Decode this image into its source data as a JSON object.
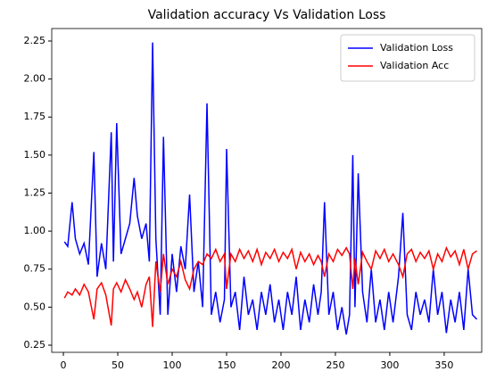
{
  "chart_data": {
    "type": "line",
    "title": "Validation accuracy Vs Validation Loss",
    "x": [
      1,
      4,
      8,
      11,
      15,
      19,
      23,
      28,
      31,
      35,
      39,
      44,
      46,
      49,
      53,
      57,
      61,
      65,
      68,
      72,
      76,
      79,
      82,
      85,
      89,
      92,
      96,
      100,
      104,
      108,
      112,
      116,
      120,
      124,
      128,
      132,
      136,
      140,
      144,
      148,
      150,
      154,
      158,
      162,
      166,
      170,
      174,
      178,
      182,
      186,
      190,
      194,
      198,
      202,
      206,
      210,
      214,
      218,
      222,
      226,
      230,
      234,
      237,
      240,
      244,
      248,
      252,
      256,
      260,
      263,
      266,
      268,
      271,
      275,
      279,
      283,
      287,
      291,
      295,
      299,
      303,
      308,
      312,
      316,
      320,
      324,
      328,
      332,
      336,
      340,
      344,
      348,
      352,
      356,
      360,
      364,
      368,
      372,
      376,
      380
    ],
    "series": [
      {
        "name": "Validation Loss",
        "color": "#0000ff",
        "values": [
          0.93,
          0.9,
          1.19,
          0.95,
          0.85,
          0.92,
          0.78,
          1.52,
          0.7,
          0.92,
          0.75,
          1.65,
          0.8,
          1.71,
          0.85,
          0.95,
          1.05,
          1.35,
          1.1,
          0.95,
          1.05,
          0.8,
          2.24,
          0.95,
          0.45,
          1.62,
          0.45,
          0.85,
          0.6,
          0.9,
          0.75,
          1.24,
          0.6,
          0.8,
          0.5,
          1.84,
          0.45,
          0.6,
          0.4,
          0.55,
          1.54,
          0.5,
          0.6,
          0.35,
          0.7,
          0.45,
          0.55,
          0.35,
          0.6,
          0.45,
          0.65,
          0.4,
          0.55,
          0.35,
          0.6,
          0.45,
          0.7,
          0.35,
          0.55,
          0.4,
          0.65,
          0.45,
          0.6,
          1.19,
          0.45,
          0.6,
          0.35,
          0.5,
          0.32,
          0.45,
          1.5,
          0.5,
          1.38,
          0.6,
          0.4,
          0.75,
          0.4,
          0.55,
          0.35,
          0.6,
          0.4,
          0.7,
          1.12,
          0.45,
          0.35,
          0.6,
          0.45,
          0.55,
          0.4,
          0.75,
          0.45,
          0.6,
          0.33,
          0.55,
          0.4,
          0.6,
          0.35,
          0.75,
          0.45,
          0.42
        ]
      },
      {
        "name": "Validation Acc",
        "color": "#ff0000",
        "values": [
          0.56,
          0.6,
          0.58,
          0.62,
          0.58,
          0.65,
          0.6,
          0.42,
          0.62,
          0.66,
          0.58,
          0.38,
          0.62,
          0.66,
          0.6,
          0.68,
          0.62,
          0.55,
          0.6,
          0.5,
          0.65,
          0.7,
          0.37,
          0.8,
          0.6,
          0.85,
          0.65,
          0.75,
          0.7,
          0.8,
          0.68,
          0.62,
          0.75,
          0.8,
          0.78,
          0.85,
          0.82,
          0.88,
          0.8,
          0.85,
          0.62,
          0.85,
          0.8,
          0.88,
          0.82,
          0.87,
          0.8,
          0.88,
          0.78,
          0.86,
          0.82,
          0.88,
          0.8,
          0.86,
          0.82,
          0.88,
          0.75,
          0.86,
          0.8,
          0.85,
          0.78,
          0.84,
          0.8,
          0.7,
          0.85,
          0.8,
          0.88,
          0.84,
          0.89,
          0.85,
          0.62,
          0.82,
          0.65,
          0.86,
          0.8,
          0.75,
          0.87,
          0.82,
          0.88,
          0.8,
          0.85,
          0.78,
          0.7,
          0.85,
          0.88,
          0.8,
          0.86,
          0.82,
          0.87,
          0.75,
          0.85,
          0.8,
          0.89,
          0.83,
          0.87,
          0.78,
          0.88,
          0.75,
          0.85,
          0.87
        ]
      }
    ],
    "xlim": [
      -10.7,
      384.5
    ],
    "xticks": [
      0,
      50,
      100,
      150,
      200,
      250,
      300,
      350
    ],
    "ylim": [
      0.203,
      2.332
    ],
    "yticks": [
      0.25,
      {
        "value": 0.5,
        "label": "0.50"
      },
      0.75,
      {
        "value": 1.0,
        "label": "1.00"
      },
      1.25,
      {
        "value": 1.5,
        "label": "1.50"
      },
      1.75,
      {
        "value": 2.0,
        "label": "2.00"
      },
      2.25
    ],
    "legend": "upper right"
  }
}
